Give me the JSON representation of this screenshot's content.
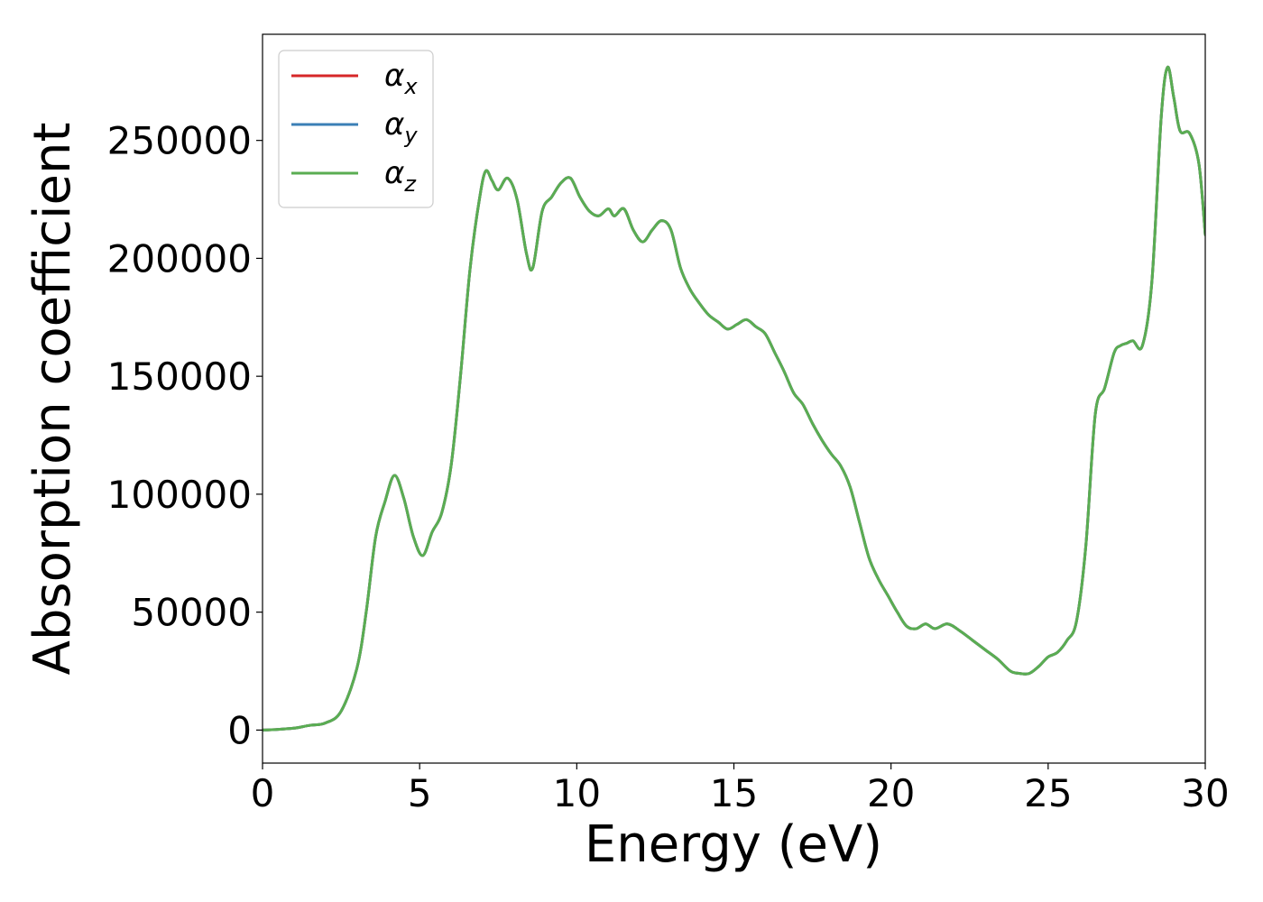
{
  "chart_data": {
    "type": "line",
    "xlabel": "Energy (eV)",
    "ylabel": "Absorption coefficient",
    "xlim": [
      0,
      30
    ],
    "ylim": [
      -14000,
      295000
    ],
    "xticks": [
      0,
      5,
      10,
      15,
      20,
      25,
      30
    ],
    "xtick_labels": [
      "0",
      "5",
      "10",
      "15",
      "20",
      "25",
      "30"
    ],
    "yticks": [
      0,
      50000,
      100000,
      150000,
      200000,
      250000
    ],
    "ytick_labels": [
      "0",
      "50000",
      "100000",
      "150000",
      "200000",
      "250000"
    ],
    "grid": false,
    "legend_position": "top-left",
    "x": [
      0.0,
      0.5,
      1.0,
      1.5,
      2.0,
      2.5,
      3.0,
      3.3,
      3.6,
      3.9,
      4.2,
      4.5,
      4.8,
      5.1,
      5.4,
      5.7,
      6.0,
      6.3,
      6.6,
      6.9,
      7.1,
      7.3,
      7.5,
      7.8,
      8.1,
      8.4,
      8.6,
      8.9,
      9.2,
      9.5,
      9.8,
      10.1,
      10.4,
      10.7,
      11.0,
      11.2,
      11.5,
      11.8,
      12.1,
      12.4,
      12.7,
      13.0,
      13.3,
      13.6,
      13.9,
      14.2,
      14.5,
      14.8,
      15.1,
      15.4,
      15.7,
      16.0,
      16.3,
      16.6,
      16.9,
      17.2,
      17.5,
      17.8,
      18.1,
      18.4,
      18.7,
      19.0,
      19.3,
      19.6,
      19.9,
      20.2,
      20.5,
      20.8,
      21.1,
      21.4,
      21.8,
      22.2,
      22.6,
      23.0,
      23.4,
      23.8,
      24.1,
      24.4,
      24.7,
      25.0,
      25.3,
      25.6,
      25.9,
      26.2,
      26.5,
      26.8,
      27.1,
      27.3,
      27.5,
      27.7,
      28.0,
      28.3,
      28.6,
      28.8,
      29.0,
      29.2,
      29.5,
      29.8,
      30.0
    ],
    "series": [
      {
        "name": "αx",
        "color": "#d62728",
        "values": [
          0,
          300,
          800,
          2000,
          3000,
          8000,
          26000,
          50000,
          82000,
          97000,
          108000,
          98000,
          82000,
          74000,
          84000,
          92000,
          112000,
          150000,
          195000,
          225000,
          237000,
          233000,
          229000,
          234000,
          225000,
          202000,
          196000,
          220000,
          226000,
          232000,
          234000,
          226000,
          220000,
          218000,
          221000,
          218000,
          221000,
          212000,
          207000,
          212000,
          216000,
          212000,
          196000,
          187000,
          181000,
          176000,
          173000,
          170000,
          172000,
          174000,
          171000,
          168000,
          160000,
          152000,
          143000,
          138000,
          130000,
          123000,
          117000,
          112000,
          103000,
          88000,
          73000,
          64000,
          57000,
          50000,
          44000,
          43000,
          45000,
          43000,
          45000,
          42000,
          38000,
          34000,
          30000,
          25000,
          24000,
          24000,
          27000,
          31000,
          33000,
          38000,
          46000,
          78000,
          134000,
          145000,
          160000,
          163000,
          164000,
          165000,
          163000,
          190000,
          260000,
          281000,
          268000,
          254000,
          253000,
          240000,
          210000
        ]
      },
      {
        "name": "αy",
        "color": "#3b7fb6",
        "values": [
          0,
          300,
          800,
          2000,
          3000,
          8000,
          26000,
          50000,
          82000,
          97000,
          108000,
          98000,
          82000,
          74000,
          84000,
          92000,
          112000,
          150000,
          195000,
          225000,
          237000,
          233000,
          229000,
          234000,
          225000,
          202000,
          196000,
          220000,
          226000,
          232000,
          234000,
          226000,
          220000,
          218000,
          221000,
          218000,
          221000,
          212000,
          207000,
          212000,
          216000,
          212000,
          196000,
          187000,
          181000,
          176000,
          173000,
          170000,
          172000,
          174000,
          171000,
          168000,
          160000,
          152000,
          143000,
          138000,
          130000,
          123000,
          117000,
          112000,
          103000,
          88000,
          73000,
          64000,
          57000,
          50000,
          44000,
          43000,
          45000,
          43000,
          45000,
          42000,
          38000,
          34000,
          30000,
          25000,
          24000,
          24000,
          27000,
          31000,
          33000,
          38000,
          46000,
          78000,
          134000,
          145000,
          160000,
          163000,
          164000,
          165000,
          163000,
          190000,
          260000,
          281000,
          268000,
          254000,
          253000,
          240000,
          210000
        ]
      },
      {
        "name": "αz",
        "color": "#5aad52",
        "values": [
          0,
          300,
          800,
          2000,
          3000,
          8000,
          26000,
          50000,
          82000,
          97000,
          108000,
          98000,
          82000,
          74000,
          84000,
          92000,
          112000,
          150000,
          195000,
          225000,
          237000,
          233000,
          229000,
          234000,
          225000,
          202000,
          196000,
          220000,
          226000,
          232000,
          234000,
          226000,
          220000,
          218000,
          221000,
          218000,
          221000,
          212000,
          207000,
          212000,
          216000,
          212000,
          196000,
          187000,
          181000,
          176000,
          173000,
          170000,
          172000,
          174000,
          171000,
          168000,
          160000,
          152000,
          143000,
          138000,
          130000,
          123000,
          117000,
          112000,
          103000,
          88000,
          73000,
          64000,
          57000,
          50000,
          44000,
          43000,
          45000,
          43000,
          45000,
          42000,
          38000,
          34000,
          30000,
          25000,
          24000,
          24000,
          27000,
          31000,
          33000,
          38000,
          46000,
          78000,
          134000,
          145000,
          160000,
          163000,
          164000,
          165000,
          163000,
          190000,
          260000,
          281000,
          268000,
          254000,
          253000,
          240000,
          210000
        ]
      }
    ],
    "legend": [
      {
        "symbol": "α",
        "subscript": "x"
      },
      {
        "symbol": "α",
        "subscript": "y"
      },
      {
        "symbol": "α",
        "subscript": "z"
      }
    ]
  }
}
